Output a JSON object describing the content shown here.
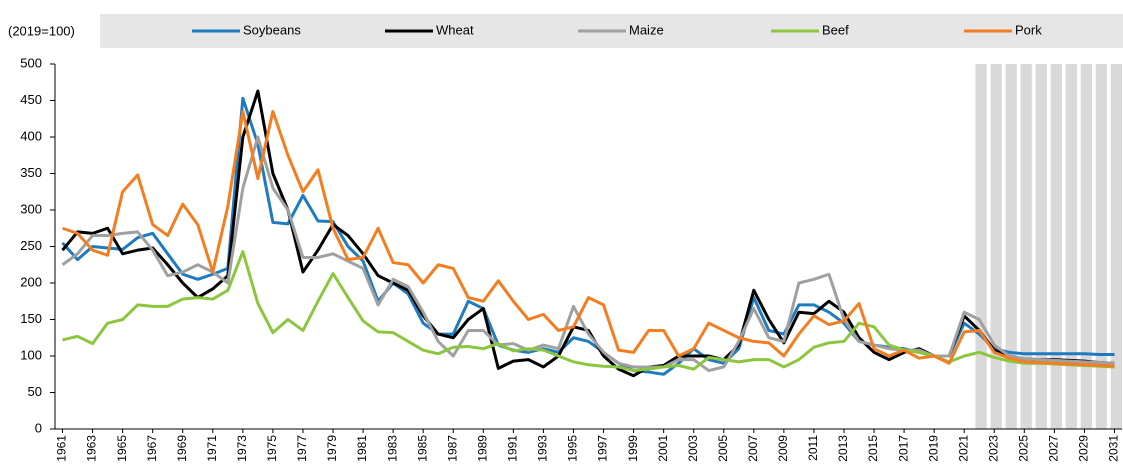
{
  "chart_data": {
    "type": "line",
    "y_axis_label": "(2019=100)",
    "x": [
      1961,
      1962,
      1963,
      1964,
      1965,
      1966,
      1967,
      1968,
      1969,
      1970,
      1971,
      1972,
      1973,
      1974,
      1975,
      1976,
      1977,
      1978,
      1979,
      1980,
      1981,
      1982,
      1983,
      1984,
      1985,
      1986,
      1987,
      1988,
      1989,
      1990,
      1991,
      1992,
      1993,
      1994,
      1995,
      1996,
      1997,
      1998,
      1999,
      2000,
      2001,
      2002,
      2003,
      2004,
      2005,
      2006,
      2007,
      2008,
      2009,
      2010,
      2011,
      2012,
      2013,
      2014,
      2015,
      2016,
      2017,
      2018,
      2019,
      2020,
      2021,
      2022,
      2023,
      2024,
      2025,
      2026,
      2027,
      2028,
      2029,
      2030,
      2031
    ],
    "xlim": [
      1960.5,
      2031.5
    ],
    "xticks": [
      1961,
      1963,
      1965,
      1967,
      1969,
      1971,
      1973,
      1975,
      1977,
      1979,
      1981,
      1983,
      1985,
      1987,
      1989,
      1991,
      1993,
      1995,
      1997,
      1999,
      2001,
      2003,
      2005,
      2007,
      2009,
      2011,
      2013,
      2015,
      2017,
      2019,
      2021,
      2023,
      2025,
      2027,
      2029,
      2031
    ],
    "ylim": [
      0,
      500
    ],
    "yticks": [
      0,
      50,
      100,
      150,
      200,
      250,
      300,
      350,
      400,
      450,
      500
    ],
    "projection_from": 2022,
    "series": [
      {
        "name": "Soybeans",
        "color": "#1f7bbf",
        "values": [
          255,
          232,
          250,
          248,
          246,
          262,
          268,
          240,
          212,
          205,
          212,
          220,
          453,
          390,
          283,
          281,
          320,
          285,
          284,
          250,
          230,
          175,
          200,
          185,
          145,
          130,
          130,
          175,
          165,
          115,
          108,
          105,
          110,
          105,
          125,
          120,
          105,
          90,
          80,
          78,
          75,
          90,
          110,
          95,
          90,
          110,
          180,
          135,
          130,
          170,
          170,
          160,
          145,
          120,
          115,
          112,
          110,
          105,
          100,
          100,
          145,
          130,
          110,
          105,
          103,
          103,
          103,
          103,
          103,
          102,
          102
        ]
      },
      {
        "name": "Wheat",
        "color": "#000000",
        "values": [
          245,
          270,
          268,
          275,
          240,
          245,
          248,
          225,
          200,
          180,
          192,
          210,
          400,
          463,
          350,
          300,
          215,
          245,
          280,
          265,
          240,
          210,
          200,
          190,
          155,
          130,
          125,
          150,
          165,
          83,
          93,
          95,
          85,
          100,
          140,
          135,
          100,
          82,
          73,
          85,
          87,
          100,
          100,
          100,
          95,
          115,
          190,
          150,
          118,
          160,
          158,
          175,
          160,
          125,
          105,
          95,
          105,
          110,
          100,
          100,
          155,
          135,
          108,
          100,
          96,
          95,
          95,
          94,
          93,
          91,
          90
        ]
      },
      {
        "name": "Maize",
        "color": "#a0a0a0",
        "values": [
          225,
          240,
          265,
          265,
          268,
          270,
          245,
          210,
          215,
          225,
          215,
          200,
          330,
          400,
          330,
          300,
          235,
          235,
          240,
          230,
          220,
          170,
          205,
          195,
          160,
          120,
          100,
          135,
          135,
          115,
          117,
          108,
          115,
          110,
          168,
          130,
          105,
          90,
          85,
          85,
          85,
          95,
          95,
          80,
          85,
          120,
          165,
          125,
          120,
          200,
          205,
          212,
          150,
          120,
          115,
          110,
          108,
          108,
          100,
          100,
          160,
          150,
          115,
          100,
          96,
          95,
          94,
          93,
          92,
          91,
          90
        ]
      },
      {
        "name": "Beef",
        "color": "#8cc63f",
        "values": [
          122,
          127,
          117,
          145,
          150,
          170,
          168,
          168,
          178,
          180,
          178,
          190,
          243,
          172,
          132,
          150,
          135,
          175,
          213,
          180,
          148,
          133,
          132,
          120,
          108,
          103,
          112,
          113,
          110,
          117,
          107,
          110,
          108,
          100,
          92,
          88,
          86,
          85,
          80,
          82,
          85,
          87,
          82,
          98,
          95,
          92,
          95,
          95,
          85,
          95,
          112,
          118,
          120,
          145,
          140,
          115,
          108,
          105,
          100,
          92,
          100,
          105,
          98,
          93,
          90,
          90,
          89,
          88,
          87,
          86,
          85
        ]
      },
      {
        "name": "Pork",
        "color": "#f47d20",
        "values": [
          275,
          268,
          245,
          238,
          325,
          348,
          280,
          265,
          308,
          280,
          215,
          305,
          435,
          343,
          435,
          375,
          325,
          355,
          275,
          232,
          235,
          275,
          228,
          225,
          200,
          225,
          220,
          180,
          175,
          203,
          175,
          150,
          157,
          135,
          140,
          180,
          170,
          108,
          105,
          135,
          135,
          100,
          110,
          145,
          135,
          125,
          120,
          118,
          100,
          130,
          155,
          143,
          148,
          172,
          110,
          100,
          108,
          97,
          100,
          90,
          133,
          135,
          105,
          97,
          92,
          91,
          90,
          89,
          88,
          87,
          86
        ]
      }
    ]
  }
}
